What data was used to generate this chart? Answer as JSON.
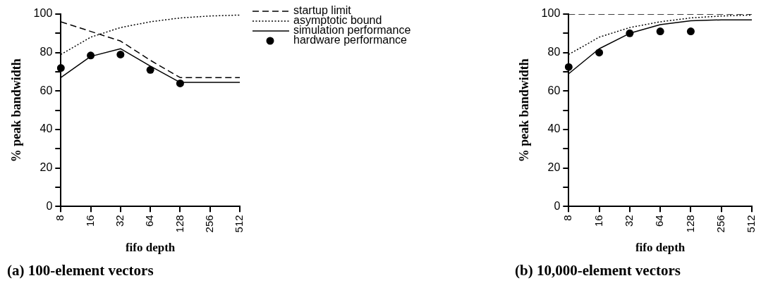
{
  "chart_data": [
    {
      "type": "line",
      "title": "(a) 100-element vectors",
      "xlabel": "fifo depth",
      "ylabel": "% peak bandwidth",
      "categories": [
        "8",
        "16",
        "32",
        "64",
        "128",
        "256",
        "512"
      ],
      "ylim": [
        0,
        100
      ],
      "yticks": [
        0,
        {
          "value": 10,
          "label": null
        },
        20,
        {
          "value": 30,
          "label": null
        },
        40,
        {
          "value": 50,
          "label": null
        },
        60,
        {
          "value": 70,
          "label": null
        },
        80,
        {
          "value": 90,
          "label": null
        },
        100
      ],
      "grid": false,
      "legend": "right",
      "series": [
        {
          "name": "startup limit",
          "color": "#000000",
          "line_style": "dashed",
          "marker": "none",
          "values": [
            96,
            91,
            86,
            76,
            67,
            67,
            67
          ]
        },
        {
          "name": "asymptotic bound",
          "color": "#000000",
          "line_style": "dotted",
          "marker": "none",
          "values": [
            79,
            88,
            93,
            96,
            98,
            99,
            99.5
          ]
        },
        {
          "name": "simulation performance",
          "color": "#000000",
          "line_style": "solid",
          "marker": "none",
          "values": [
            67,
            78,
            82,
            73,
            64.5,
            64.5,
            64.5
          ]
        },
        {
          "name": "hardware performance",
          "type": "scatter",
          "color": "#000000",
          "marker": "circle",
          "x": [
            "8",
            "16",
            "32",
            "64",
            "128"
          ],
          "values": [
            72,
            78.5,
            79,
            71,
            64
          ]
        }
      ]
    },
    {
      "type": "line",
      "title": "(b) 10,000-element vectors",
      "xlabel": "fifo depth",
      "ylabel": "% peak bandwidth",
      "categories": [
        "8",
        "16",
        "32",
        "64",
        "128",
        "256",
        "512"
      ],
      "ylim": [
        0,
        100
      ],
      "yticks": [
        0,
        {
          "value": 10,
          "label": null
        },
        20,
        {
          "value": 30,
          "label": null
        },
        40,
        {
          "value": 50,
          "label": null
        },
        60,
        {
          "value": 70,
          "label": null
        },
        80,
        {
          "value": 90,
          "label": null
        },
        100
      ],
      "grid": false,
      "series": [
        {
          "color": "#000000",
          "line_style": "dashed",
          "marker": "none",
          "values": [
            100,
            100,
            100,
            100,
            100,
            100,
            100
          ]
        },
        {
          "color": "#000000",
          "line_style": "dotted",
          "marker": "none",
          "values": [
            79,
            88,
            93,
            96,
            98,
            99,
            99.5
          ]
        },
        {
          "color": "#000000",
          "line_style": "solid",
          "marker": "none",
          "values": [
            69,
            82,
            90,
            94.5,
            96.5,
            97,
            97
          ]
        },
        {
          "type": "scatter",
          "color": "#000000",
          "marker": "circle",
          "x": [
            "8",
            "16",
            "32",
            "64",
            "128"
          ],
          "values": [
            72.5,
            80,
            90,
            91,
            91
          ]
        }
      ]
    }
  ]
}
